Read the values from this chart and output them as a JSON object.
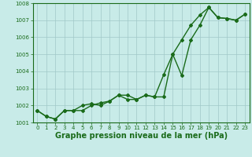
{
  "title": "",
  "xlabel": "Graphe pression niveau de la mer (hPa)",
  "x": [
    0,
    1,
    2,
    3,
    4,
    5,
    6,
    7,
    8,
    9,
    10,
    11,
    12,
    13,
    14,
    15,
    16,
    17,
    18,
    19,
    20,
    21,
    22,
    23
  ],
  "series1": [
    1001.7,
    1001.35,
    1001.2,
    1001.7,
    1001.7,
    1001.7,
    1002.0,
    1002.15,
    1002.25,
    1002.6,
    1002.6,
    1002.35,
    1002.6,
    1002.5,
    1002.5,
    1005.0,
    1005.85,
    1006.7,
    1007.3,
    1007.75,
    1007.15,
    1007.1,
    1007.0,
    1007.35
  ],
  "series2": [
    1001.7,
    1001.35,
    1001.2,
    1001.7,
    1001.7,
    1002.0,
    1002.1,
    1002.0,
    1002.25,
    1002.6,
    1002.35,
    1002.35,
    1002.6,
    1002.5,
    1003.8,
    1005.0,
    1003.75,
    1005.85,
    1006.7,
    1007.75,
    1007.15,
    1007.1,
    1007.0,
    1007.35
  ],
  "ylim": [
    1001.0,
    1008.0
  ],
  "xlim": [
    -0.5,
    23.5
  ],
  "yticks": [
    1001,
    1002,
    1003,
    1004,
    1005,
    1006,
    1007,
    1008
  ],
  "xticks": [
    0,
    1,
    2,
    3,
    4,
    5,
    6,
    7,
    8,
    9,
    10,
    11,
    12,
    13,
    14,
    15,
    16,
    17,
    18,
    19,
    20,
    21,
    22,
    23
  ],
  "line_color": "#1a6b1a",
  "bg_color": "#c8ebe8",
  "grid_color": "#a0c8c8",
  "marker": "D",
  "marker_size": 2.0,
  "line_width": 1.0,
  "xlabel_fontsize": 7,
  "tick_fontsize": 5,
  "xlabel_color": "#1a6b1a",
  "xlabel_fontweight": "bold"
}
